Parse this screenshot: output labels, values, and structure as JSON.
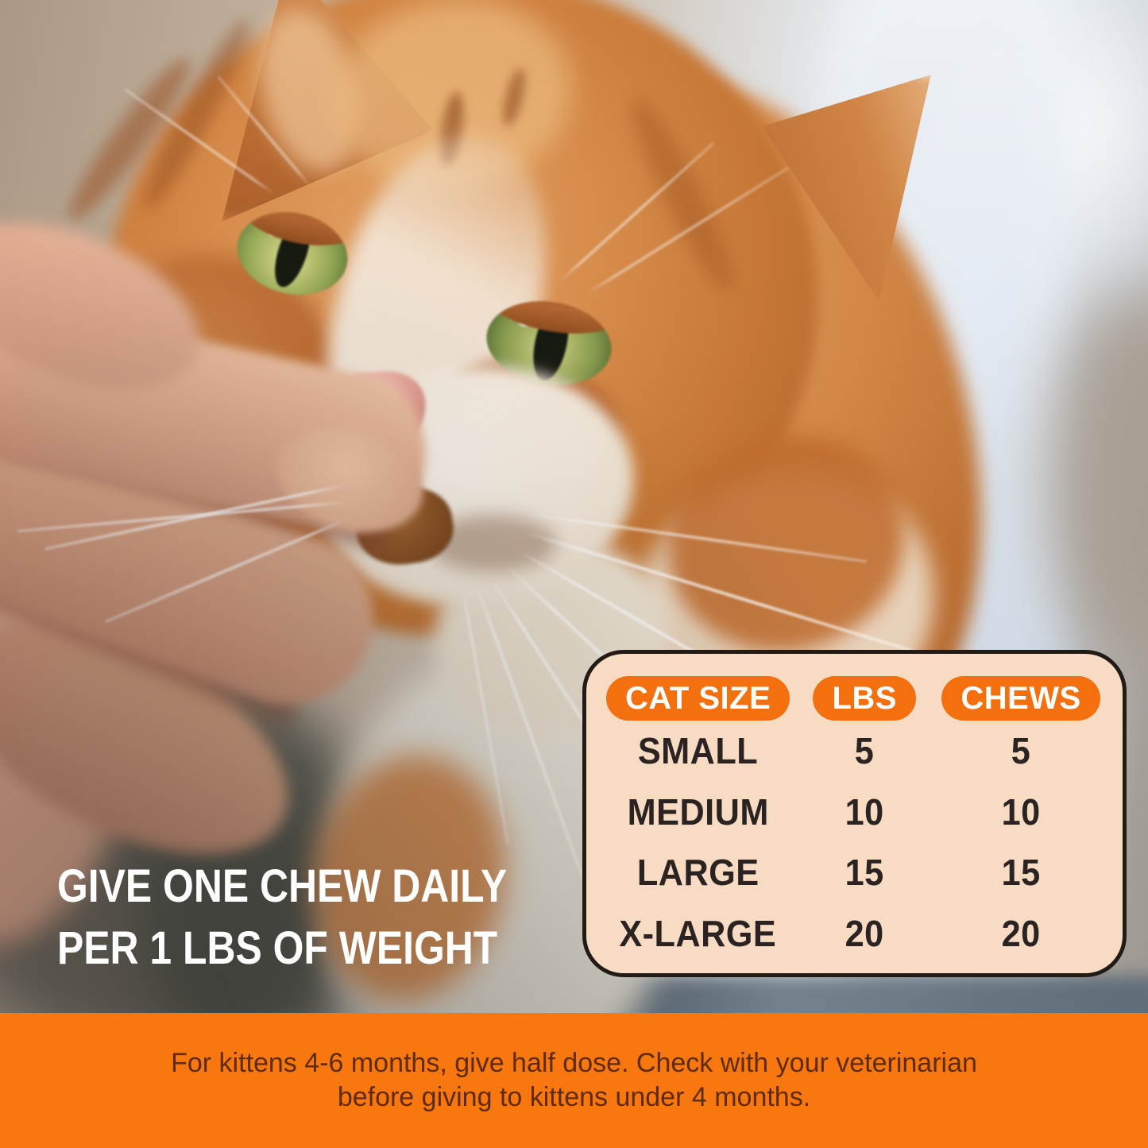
{
  "photo": {
    "alt": "Close-up photo of a hand feeding a soft chew treat to an orange and white tabby cat"
  },
  "headline": {
    "line1": "GIVE ONE CHEW DAILY",
    "line2": "PER 1 LBS OF WEIGHT"
  },
  "table": {
    "columns": [
      "CAT SIZE",
      "LBS",
      "CHEWS"
    ],
    "rows": [
      {
        "cat_size": "SMALL",
        "lbs": "5",
        "chews": "5"
      },
      {
        "cat_size": "MEDIUM",
        "lbs": "10",
        "chews": "10"
      },
      {
        "cat_size": "LARGE",
        "lbs": "15",
        "chews": "15"
      },
      {
        "cat_size": "X-LARGE",
        "lbs": "20",
        "chews": "20"
      }
    ]
  },
  "banner": {
    "line1": "For kittens 4-6 months, give half dose. Check with your veterinarian",
    "line2": "before giving to kittens under 4 months."
  },
  "colors": {
    "accent_orange": "#F4700E",
    "banner_orange": "#F8770E",
    "card_bg": "#F7DBC3",
    "card_border": "#211A15",
    "table_text": "#2A2321",
    "pill_text": "#FFFFFF",
    "banner_text": "#5C2B10",
    "headline_text": "#FFFFFF"
  }
}
